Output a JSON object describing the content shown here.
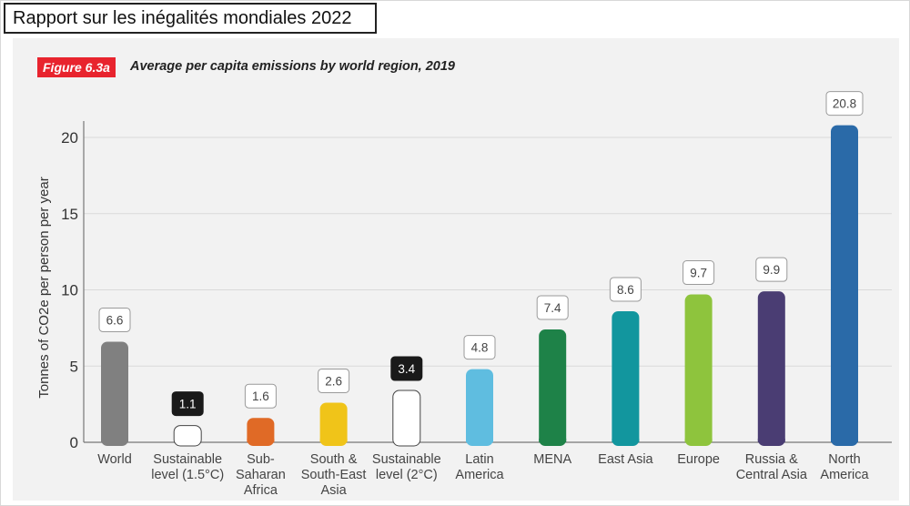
{
  "header": {
    "title": "Rapport sur les inégalités mondiales 2022"
  },
  "figure": {
    "badge": "Figure 6.3a",
    "caption": "Average per capita emissions by world region, 2019"
  },
  "colors": {
    "badge_bg": "#e8242e",
    "panel_bg": "#f2f2f2",
    "grid": "#d9d9d9"
  },
  "chart_data": {
    "type": "bar",
    "title": "Average per capita emissions by world region, 2019",
    "ylabel": "Tonnes of CO2e per person per year",
    "xlabel": "",
    "ylim": [
      0,
      22
    ],
    "yticks": [
      0,
      5,
      10,
      15,
      20
    ],
    "grid": true,
    "categories": [
      [
        "World"
      ],
      [
        "Sustainable",
        "level (1.5°C)"
      ],
      [
        "Sub-",
        "Saharan",
        "Africa"
      ],
      [
        "South &",
        "South-East",
        "Asia"
      ],
      [
        "Sustainable",
        "level (2°C)"
      ],
      [
        "Latin",
        "America"
      ],
      [
        "MENA"
      ],
      [
        "East Asia"
      ],
      [
        "Europe"
      ],
      [
        "Russia &",
        "Central Asia"
      ],
      [
        "North",
        "America"
      ]
    ],
    "values": [
      6.6,
      1.1,
      1.6,
      2.6,
      3.4,
      4.8,
      7.4,
      8.6,
      9.7,
      9.9,
      20.8
    ],
    "value_labels": [
      "6.6",
      "1.1",
      "1.6",
      "2.6",
      "3.4",
      "4.8",
      "7.4",
      "8.6",
      "9.7",
      "9.9",
      "20.8"
    ],
    "colors": [
      "#808080",
      "#ffffff",
      "#e06a26",
      "#f0c419",
      "#ffffff",
      "#5fbde0",
      "#1e8248",
      "#12969e",
      "#8ec43d",
      "#4a3d73",
      "#2a6aa8"
    ],
    "outlined_bars": [
      1,
      4
    ],
    "dark_label_bars": [
      1,
      4
    ]
  }
}
